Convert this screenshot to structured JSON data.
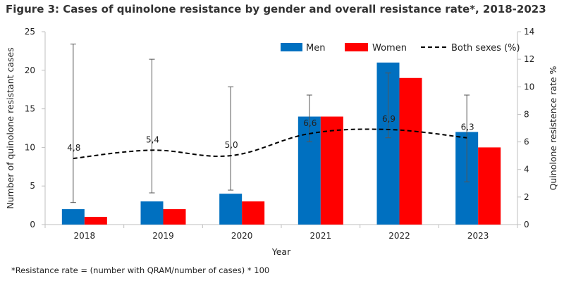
{
  "figure": {
    "title": "Figure 3: Cases  of quinolone resistance  by gender and overall resistance  rate*, 2018-2023",
    "footnote": "*Resistance rate = (number with QRAM/number  of cases)  * 100"
  },
  "colors": {
    "men": "#0070c0",
    "women": "#ff0000",
    "line": "#000000",
    "errorbar": "#555555",
    "axis": "#bfbfbf",
    "text": "#222222"
  },
  "chart_data": {
    "type": "bar",
    "title": "Figure 3: Cases  of quinolone resistance  by gender and overall resistance  rate*, 2018-2023",
    "xlabel": "Year",
    "ylabel": "Number of quinolone resistant cases",
    "y2label": "Quinolone resistence rate %",
    "categories": [
      "2018",
      "2019",
      "2020",
      "2021",
      "2022",
      "2023"
    ],
    "ylim": [
      0,
      25
    ],
    "yticks": [
      0,
      5,
      10,
      15,
      20,
      25
    ],
    "y2lim": [
      0,
      14
    ],
    "y2ticks": [
      0,
      2,
      4,
      6,
      8,
      10,
      12,
      14
    ],
    "series": [
      {
        "name": "Men",
        "type": "bar",
        "axis": "left",
        "values": [
          2,
          3,
          4,
          14,
          21,
          12
        ]
      },
      {
        "name": "Women",
        "type": "bar",
        "axis": "left",
        "values": [
          1,
          2,
          3,
          14,
          19,
          10
        ]
      },
      {
        "name": "Both sexes (%)",
        "type": "line",
        "style": "dashed",
        "axis": "right",
        "values": [
          4.8,
          5.4,
          5.0,
          6.6,
          6.9,
          6.3
        ],
        "labels": [
          "4,8",
          "5,4",
          "5,0",
          "6,6",
          "6,9",
          "6,3"
        ],
        "error_low": [
          1.6,
          2.3,
          2.5,
          6.0,
          6.3,
          3.1
        ],
        "error_high": [
          13.1,
          12.0,
          10.0,
          9.4,
          11.0,
          9.4
        ]
      }
    ],
    "grid": false,
    "legend": "top-right"
  }
}
